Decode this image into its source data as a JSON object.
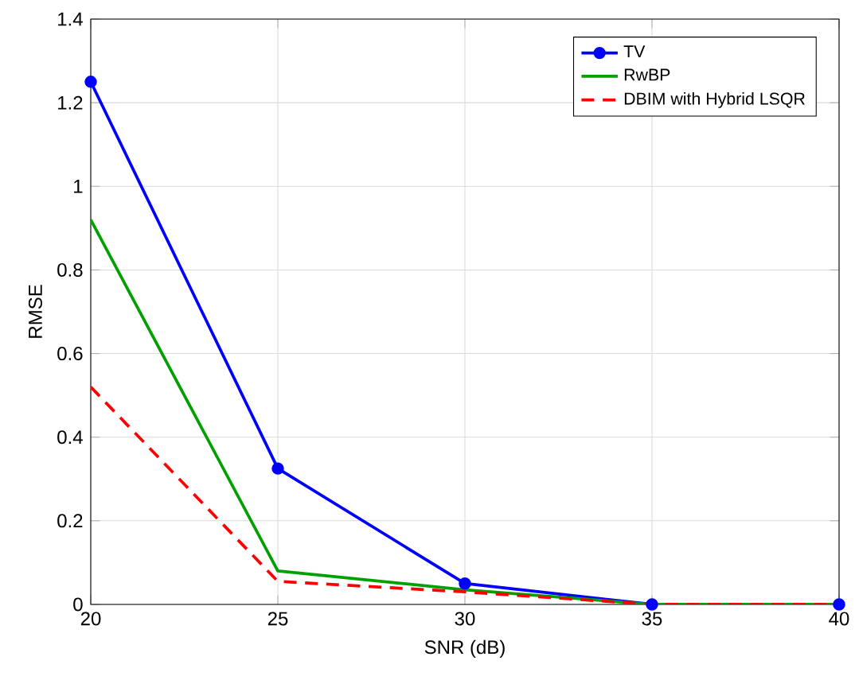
{
  "chart_data": {
    "type": "line",
    "xlabel": "SNR (dB)",
    "ylabel": "RMSE",
    "x": [
      20,
      25,
      30,
      35,
      40
    ],
    "series": [
      {
        "name": "TV",
        "color": "#0000ff",
        "values": [
          1.25,
          0.325,
          0.05,
          0,
          0
        ],
        "marker": "circle",
        "line_style": "solid"
      },
      {
        "name": "RwBP",
        "color": "#00a000",
        "values": [
          0.92,
          0.08,
          0.035,
          0,
          0
        ],
        "marker": "none",
        "line_style": "solid"
      },
      {
        "name": "DBIM with Hybrid LSQR",
        "color": "#ff0000",
        "values": [
          0.52,
          0.055,
          0.03,
          0,
          0
        ],
        "marker": "none",
        "line_style": "dashed"
      }
    ],
    "xlim": [
      20,
      40
    ],
    "ylim": [
      0,
      1.4
    ],
    "xticks": [
      20,
      25,
      30,
      35,
      40
    ],
    "yticks": [
      0,
      0.2,
      0.4,
      0.6,
      0.8,
      1,
      1.2,
      1.4
    ],
    "grid": true,
    "legend": "top right"
  }
}
